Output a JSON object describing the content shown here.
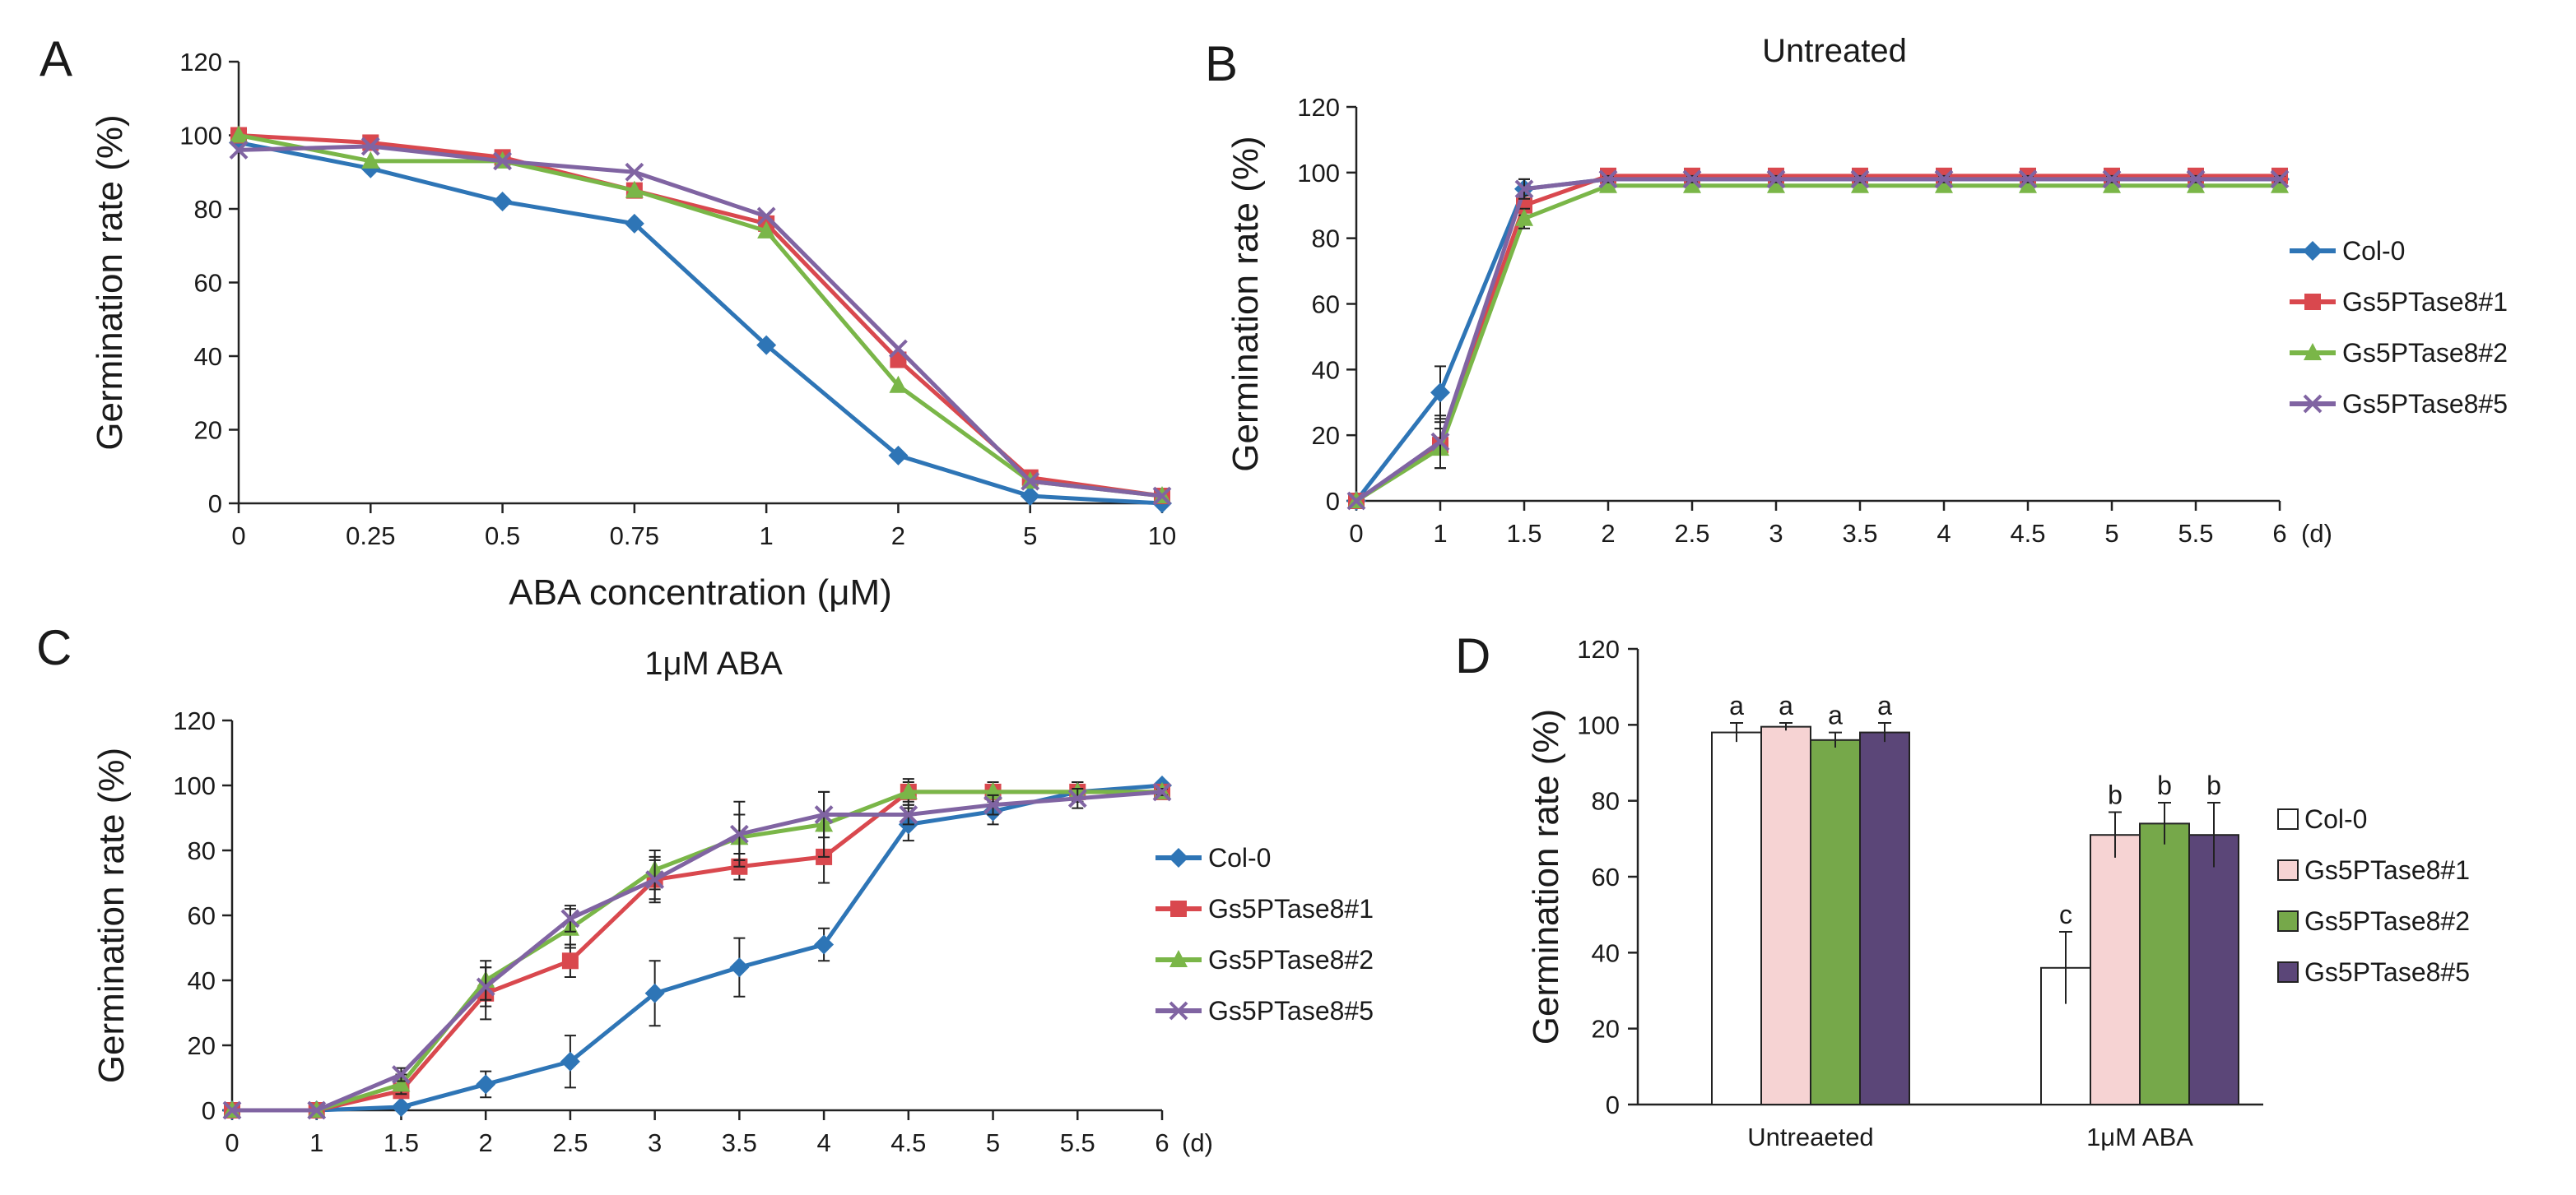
{
  "figure": {
    "panel_letters": [
      "A",
      "B",
      "C",
      "D"
    ]
  },
  "colors": {
    "col0": "#2e75b6",
    "gs1": "#d9484e",
    "gs2": "#7ab648",
    "gs5": "#8064a2",
    "bar_col0": "#ffffff",
    "bar_gs1": "#f6d3d3",
    "bar_gs2": "#76a84a",
    "bar_gs5": "#5b4678"
  },
  "chart_data": [
    {
      "panel": "A",
      "type": "line",
      "title": "",
      "xlabel": "ABA concentration (μM)",
      "ylabel": "Germination rate (%)",
      "categories": [
        "0",
        "0.25",
        "0.5",
        "0.75",
        "1",
        "2",
        "5",
        "10"
      ],
      "ylim": [
        0,
        120
      ],
      "yticks": [
        "0",
        "20",
        "40",
        "60",
        "80",
        "100",
        "120"
      ],
      "series": [
        {
          "name": "Col-0",
          "marker": "diamond",
          "values": [
            98,
            91,
            82,
            76,
            43,
            13,
            2,
            0
          ]
        },
        {
          "name": "Gs5PTase8#1",
          "marker": "square",
          "values": [
            100,
            98,
            94,
            85,
            76,
            39,
            7,
            2
          ]
        },
        {
          "name": "Gs5PTase8#2",
          "marker": "triangle",
          "values": [
            100,
            93,
            93,
            85,
            74,
            32,
            6,
            2
          ]
        },
        {
          "name": "Gs5PTase8#5",
          "marker": "cross",
          "values": [
            96,
            97,
            93,
            90,
            78,
            42,
            6,
            2
          ]
        }
      ]
    },
    {
      "panel": "B",
      "type": "line",
      "title": "Untreated",
      "xlabel": "",
      "unit": "(d)",
      "ylabel": "Germination rate (%)",
      "categories": [
        "0",
        "1",
        "1.5",
        "2",
        "2.5",
        "3",
        "3.5",
        "4",
        "4.5",
        "5",
        "5.5",
        "6"
      ],
      "ylim": [
        0,
        120
      ],
      "yticks": [
        "0",
        "20",
        "40",
        "60",
        "80",
        "100",
        "120"
      ],
      "legend": [
        "Col-0",
        "Gs5PTase8#1",
        "Gs5PTase8#2",
        "Gs5PTase8#5"
      ],
      "series": [
        {
          "name": "Col-0",
          "marker": "diamond",
          "values": [
            0,
            33,
            95,
            98,
            98,
            98,
            98,
            98,
            98,
            98,
            98,
            98
          ],
          "errors": [
            0,
            8,
            3,
            1,
            1,
            1,
            1,
            1,
            1,
            1,
            1,
            1
          ]
        },
        {
          "name": "Gs5PTase8#1",
          "marker": "square",
          "values": [
            0,
            17,
            90,
            99,
            99,
            99,
            99,
            99,
            99,
            99,
            99,
            99
          ],
          "errors": [
            0,
            7,
            3,
            1,
            1,
            1,
            1,
            1,
            1,
            1,
            1,
            1
          ]
        },
        {
          "name": "Gs5PTase8#2",
          "marker": "triangle",
          "values": [
            0,
            16,
            86,
            96,
            96,
            96,
            96,
            96,
            96,
            96,
            96,
            96
          ],
          "errors": [
            0,
            6,
            3,
            1,
            1,
            1,
            1,
            1,
            1,
            1,
            1,
            1
          ]
        },
        {
          "name": "Gs5PTase8#5",
          "marker": "cross",
          "values": [
            0,
            18,
            95,
            98,
            98,
            98,
            98,
            98,
            98,
            98,
            98,
            98
          ],
          "errors": [
            0,
            8,
            3,
            1,
            1,
            1,
            1,
            1,
            1,
            1,
            1,
            1
          ]
        }
      ]
    },
    {
      "panel": "C",
      "type": "line",
      "title": "1μM ABA",
      "xlabel": "",
      "unit": "(d)",
      "ylabel": "Germination rate (%)",
      "categories": [
        "0",
        "1",
        "1.5",
        "2",
        "2.5",
        "3",
        "3.5",
        "4",
        "4.5",
        "5",
        "5.5",
        "6"
      ],
      "ylim": [
        0,
        120
      ],
      "yticks": [
        "0",
        "20",
        "40",
        "60",
        "80",
        "100",
        "120"
      ],
      "legend": [
        "Col-0",
        "Gs5PTase8#1",
        "Gs5PTase8#2",
        "Gs5PTase8#5"
      ],
      "series": [
        {
          "name": "Col-0",
          "marker": "diamond",
          "values": [
            0,
            0,
            1,
            8,
            15,
            36,
            44,
            51,
            88,
            92,
            98,
            100
          ],
          "errors": [
            0,
            0,
            1,
            4,
            8,
            10,
            9,
            5,
            5,
            4,
            3,
            1
          ]
        },
        {
          "name": "Gs5PTase8#1",
          "marker": "square",
          "values": [
            0,
            0,
            6,
            36,
            46,
            71,
            75,
            78,
            98,
            98,
            98,
            98
          ],
          "errors": [
            0,
            0,
            2,
            8,
            5,
            6,
            4,
            8,
            3,
            3,
            3,
            1
          ]
        },
        {
          "name": "Gs5PTase8#2",
          "marker": "triangle",
          "values": [
            0,
            0,
            8,
            40,
            56,
            74,
            84,
            88,
            98,
            98,
            98,
            98
          ],
          "errors": [
            0,
            0,
            3,
            6,
            6,
            6,
            7,
            10,
            4,
            3,
            3,
            1
          ]
        },
        {
          "name": "Gs5PTase8#5",
          "marker": "cross",
          "values": [
            0,
            0,
            11,
            38,
            59,
            71,
            85,
            91,
            91,
            94,
            96,
            98
          ],
          "errors": [
            0,
            0,
            2,
            6,
            4,
            7,
            10,
            7,
            3,
            3,
            3,
            1
          ]
        }
      ]
    },
    {
      "panel": "D",
      "type": "bar",
      "title": "",
      "xlabel": "",
      "ylabel": "Germination rate (%)",
      "categories": [
        "Untreaeted",
        "1μM ABA"
      ],
      "ylim": [
        0,
        120
      ],
      "yticks": [
        "0",
        "20",
        "40",
        "60",
        "80",
        "100",
        "120"
      ],
      "legend": [
        "Col-0",
        "Gs5PTase8#1",
        "Gs5PTase8#2",
        "Gs5PTase8#5"
      ],
      "series": [
        {
          "name": "Col-0",
          "values": [
            98,
            36
          ],
          "errors": [
            2.5,
            9.5
          ],
          "labels": [
            "a",
            "c"
          ]
        },
        {
          "name": "Gs5PTase8#1",
          "values": [
            99.5,
            71
          ],
          "errors": [
            1,
            6
          ],
          "labels": [
            "a",
            "b"
          ]
        },
        {
          "name": "Gs5PTase8#2",
          "values": [
            96,
            74
          ],
          "errors": [
            2,
            5.5
          ],
          "labels": [
            "a",
            "b"
          ]
        },
        {
          "name": "Gs5PTase8#5",
          "values": [
            98,
            71
          ],
          "errors": [
            2.5,
            8.5
          ],
          "labels": [
            "a",
            "b"
          ]
        }
      ]
    }
  ]
}
